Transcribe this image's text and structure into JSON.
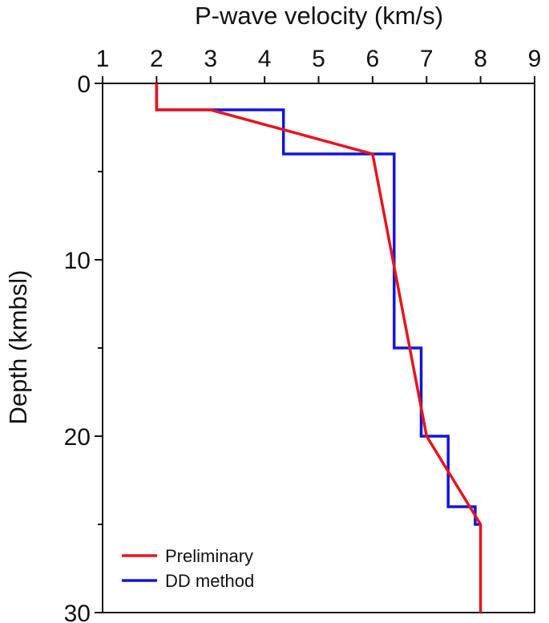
{
  "chart_data": {
    "type": "line",
    "title": "P-wave velocity (km/s)",
    "xlabel": "",
    "ylabel": "Depth (kmbsl)",
    "xlim": [
      1,
      9
    ],
    "ylim": [
      0,
      30
    ],
    "y_inverted": true,
    "x_axis_position": "top",
    "x_ticks": [
      1,
      2,
      3,
      4,
      5,
      6,
      7,
      8,
      9
    ],
    "y_ticks": [
      0,
      10,
      20,
      30
    ],
    "grid": false,
    "legend_position": "bottom-left",
    "series": [
      {
        "name": "Preliminary",
        "color": "#e8141c",
        "x": [
          2.0,
          2.0,
          3.0,
          6.0,
          7.0,
          8.0,
          8.0
        ],
        "y": [
          0,
          1.5,
          1.5,
          4.0,
          20.0,
          25.0,
          30.0
        ]
      },
      {
        "name": "DD method",
        "color": "#1414d8",
        "x": [
          2.0,
          2.0,
          2.5,
          2.5,
          4.35,
          4.35,
          6.4,
          6.4,
          6.9,
          6.9,
          7.4,
          7.4,
          7.9,
          7.9,
          8.0
        ],
        "y": [
          0,
          1.5,
          1.5,
          1.5,
          1.5,
          4.0,
          4.0,
          15.0,
          15.0,
          20.0,
          20.0,
          24.0,
          24.0,
          25.0,
          25.0
        ]
      }
    ]
  }
}
